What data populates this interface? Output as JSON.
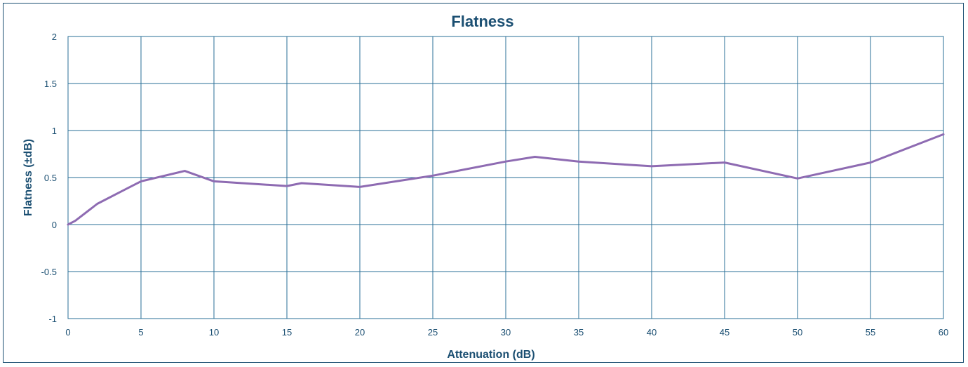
{
  "chart_data": {
    "type": "line",
    "title": "Flatness",
    "xlabel": "Attenuation (dB)",
    "ylabel": "Flatness (±dB)",
    "xlim": [
      0,
      60
    ],
    "ylim": [
      -1,
      2
    ],
    "xticks": [
      0,
      5,
      10,
      15,
      20,
      25,
      30,
      35,
      40,
      45,
      50,
      55,
      60
    ],
    "yticks": [
      -1,
      -0.5,
      0,
      0.5,
      1,
      1.5,
      2
    ],
    "ytick_labels": [
      "-1",
      "-0.5",
      "0",
      "0.5",
      "1",
      "1.5",
      "2"
    ],
    "grid": true,
    "colors": {
      "line": "#8e6bb2",
      "grid": "#2a6f97",
      "text": "#1b4f72"
    },
    "series": [
      {
        "x": [
          0,
          0.5,
          2,
          4,
          5,
          8,
          10,
          15,
          16,
          20,
          25,
          30,
          32,
          35,
          40,
          45,
          50,
          55,
          60
        ],
        "y": [
          0.0,
          0.04,
          0.22,
          0.38,
          0.46,
          0.57,
          0.46,
          0.41,
          0.44,
          0.4,
          0.52,
          0.67,
          0.72,
          0.67,
          0.62,
          0.66,
          0.49,
          0.66,
          0.96
        ]
      }
    ]
  }
}
